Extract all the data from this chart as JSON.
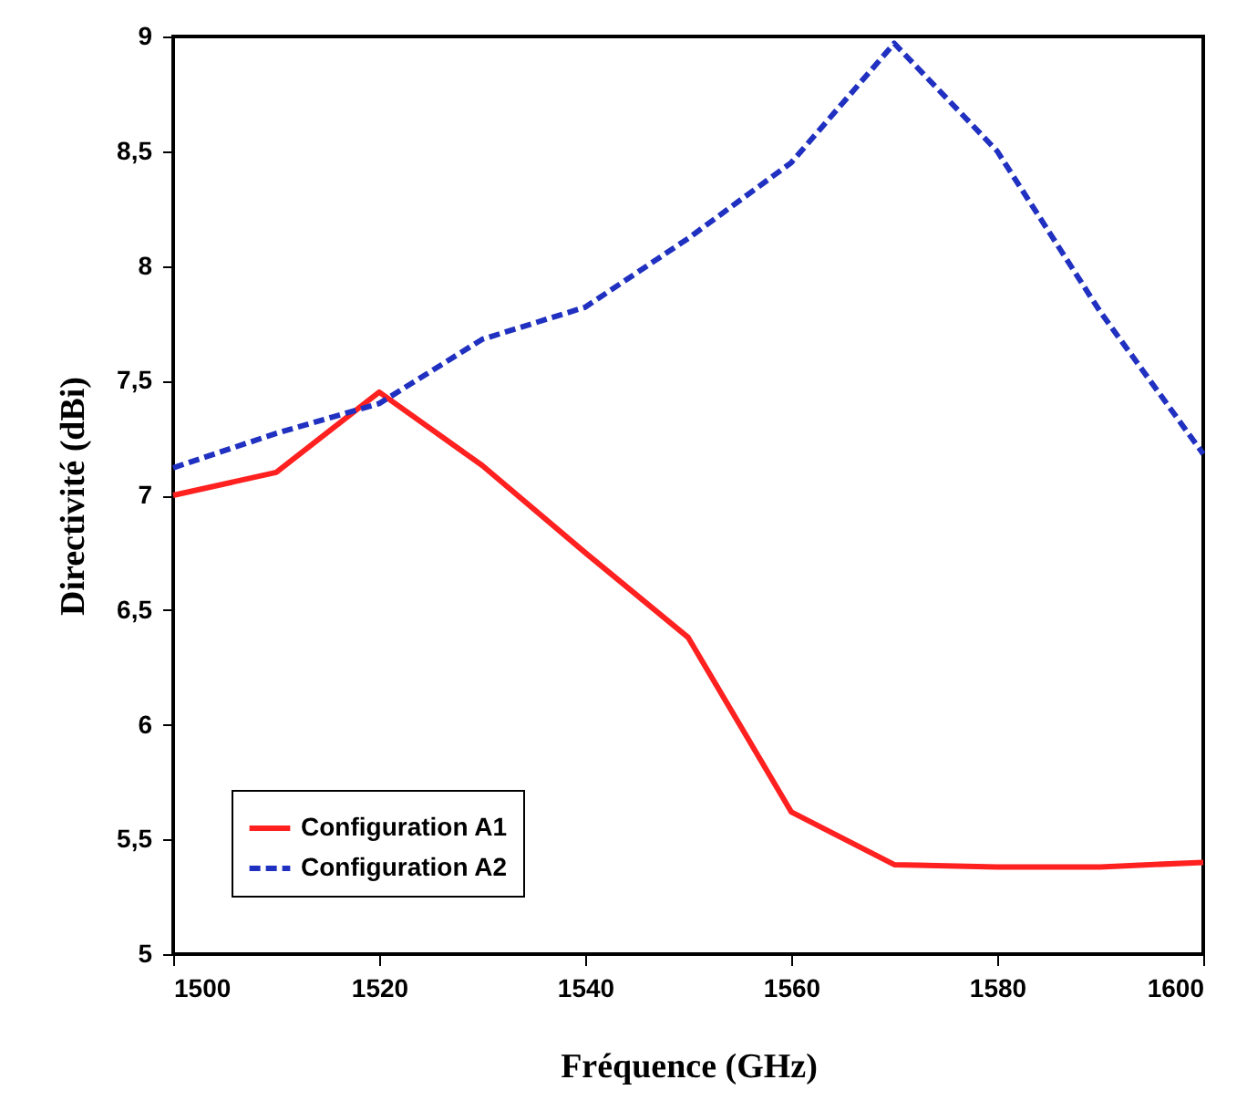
{
  "chart_data": {
    "type": "line",
    "xlabel": "Fréquence (GHz)",
    "ylabel": "Directivité (dBi)",
    "x": [
      1500,
      1510,
      1520,
      1530,
      1540,
      1550,
      1560,
      1570,
      1580,
      1590,
      1600
    ],
    "series": [
      {
        "name": "Configuration A1",
        "color": "#ff2020",
        "line_style": "solid",
        "values": [
          7.0,
          7.1,
          7.45,
          7.13,
          6.75,
          6.38,
          5.62,
          5.39,
          5.38,
          5.38,
          5.4
        ]
      },
      {
        "name": "Configuration A2",
        "color": "#2030c0",
        "line_style": "dashed",
        "values": [
          7.12,
          7.27,
          7.4,
          7.68,
          7.82,
          8.12,
          8.45,
          8.97,
          8.5,
          7.8,
          7.18
        ]
      }
    ],
    "xlim": [
      1500,
      1600
    ],
    "xticks": [
      1500,
      1520,
      1540,
      1560,
      1580,
      1600
    ],
    "ylim": [
      5,
      9
    ],
    "yticks": [
      5,
      {
        "value": 5.5,
        "label": "5,5"
      },
      6,
      {
        "value": 6.5,
        "label": "6,5"
      },
      7,
      {
        "value": 7.5,
        "label": "7,5"
      },
      8,
      {
        "value": 8.5,
        "label": "8,5"
      },
      9
    ],
    "grid": false,
    "legend": "bottom left",
    "marker": "none"
  }
}
